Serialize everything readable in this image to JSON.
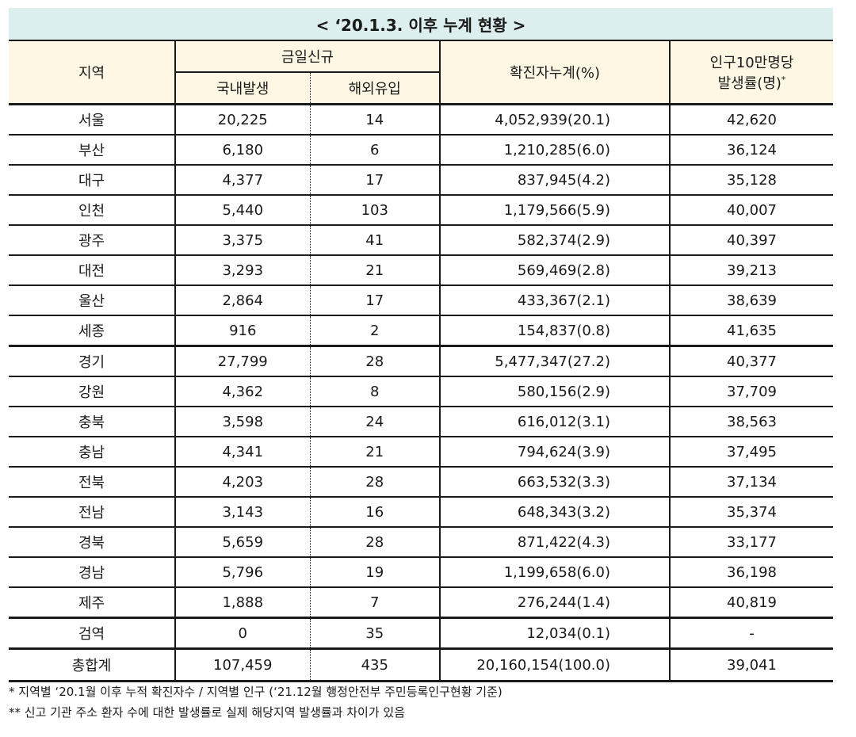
{
  "title": "< ‘20.1.3. 이후 누계 현황 >",
  "headers": {
    "region": "지역",
    "daily_new": "금일신규",
    "domestic": "국내발생",
    "overseas": "해외유입",
    "cumulative": "확진자누계(%)",
    "rate_line1": "인구10만명당",
    "rate_line2": "발생률(명)",
    "rate_mark": "*"
  },
  "rows": [
    {
      "region": "서울",
      "domestic": "20,225",
      "overseas": "14",
      "cumulative": "4,052,939(20.1)",
      "rate": "42,620"
    },
    {
      "region": "부산",
      "domestic": "6,180",
      "overseas": "6",
      "cumulative": "1,210,285(6.0)",
      "rate": "36,124"
    },
    {
      "region": "대구",
      "domestic": "4,377",
      "overseas": "17",
      "cumulative": "837,945(4.2)",
      "rate": "35,128"
    },
    {
      "region": "인천",
      "domestic": "5,440",
      "overseas": "103",
      "cumulative": "1,179,566(5.9)",
      "rate": "40,007"
    },
    {
      "region": "광주",
      "domestic": "3,375",
      "overseas": "41",
      "cumulative": "582,374(2.9)",
      "rate": "40,397"
    },
    {
      "region": "대전",
      "domestic": "3,293",
      "overseas": "21",
      "cumulative": "569,469(2.8)",
      "rate": "39,213"
    },
    {
      "region": "울산",
      "domestic": "2,864",
      "overseas": "17",
      "cumulative": "433,367(2.1)",
      "rate": "38,639"
    },
    {
      "region": "세종",
      "domestic": "916",
      "overseas": "2",
      "cumulative": "154,837(0.8)",
      "rate": "41,635"
    },
    {
      "region": "경기",
      "domestic": "27,799",
      "overseas": "28",
      "cumulative": "5,477,347(27.2)",
      "rate": "40,377"
    },
    {
      "region": "강원",
      "domestic": "4,362",
      "overseas": "8",
      "cumulative": "580,156(2.9)",
      "rate": "37,709"
    },
    {
      "region": "충북",
      "domestic": "3,598",
      "overseas": "24",
      "cumulative": "616,012(3.1)",
      "rate": "38,563"
    },
    {
      "region": "충남",
      "domestic": "4,341",
      "overseas": "21",
      "cumulative": "794,624(3.9)",
      "rate": "37,495"
    },
    {
      "region": "전북",
      "domestic": "4,203",
      "overseas": "28",
      "cumulative": "663,532(3.3)",
      "rate": "37,134"
    },
    {
      "region": "전남",
      "domestic": "3,143",
      "overseas": "16",
      "cumulative": "648,343(3.2)",
      "rate": "35,374"
    },
    {
      "region": "경북",
      "domestic": "5,659",
      "overseas": "28",
      "cumulative": "871,422(4.3)",
      "rate": "33,177"
    },
    {
      "region": "경남",
      "domestic": "5,796",
      "overseas": "19",
      "cumulative": "1,199,658(6.0)",
      "rate": "36,198"
    },
    {
      "region": "제주",
      "domestic": "1,888",
      "overseas": "7",
      "cumulative": "276,244(1.4)",
      "rate": "40,819"
    },
    {
      "region": "검역",
      "domestic": "0",
      "overseas": "35",
      "cumulative": "12,034(0.1)",
      "rate": "-"
    },
    {
      "region": "총합계",
      "domestic": "107,459",
      "overseas": "435",
      "cumulative": "20,160,154(100.0)",
      "rate": "39,041"
    }
  ],
  "notes": [
    "* 지역별 ‘20.1월 이후 누적 확진자수 / 지역별 인구 (‘21.12월 행정안전부 주민등록인구현황 기준)",
    "** 신고 기관 주소 환자 수에 대한 발생률로 실제 해당지역 발생률과 차이가 있음"
  ],
  "colors": {
    "title_bg": "#dceeee",
    "header_bg": "#fdf7e3",
    "border": "#1a1a1a"
  }
}
